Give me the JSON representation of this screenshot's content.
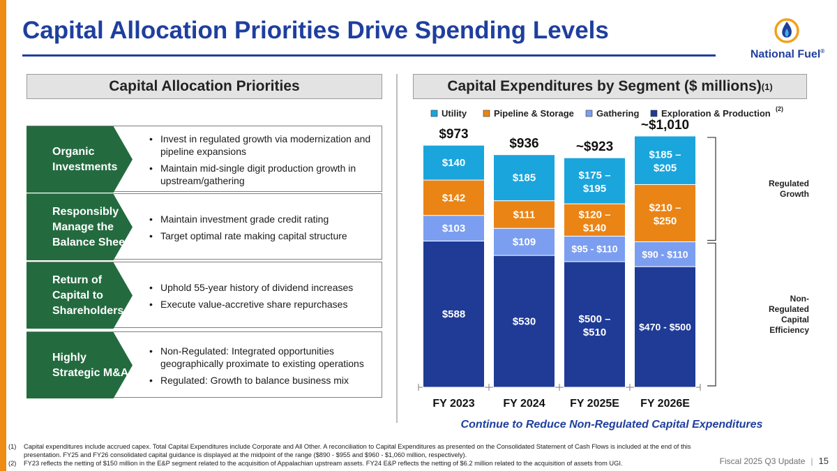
{
  "slide": {
    "title": "Capital Allocation Priorities Drive Spending Levels",
    "brand": "National Fuel",
    "brand_mark": "®",
    "footer_label": "Fiscal 2025 Q3 Update",
    "page_number": "15"
  },
  "left_panel": {
    "header": "Capital Allocation Priorities",
    "rows": [
      {
        "label": "Organic Investments",
        "bullets": [
          "Invest in regulated growth via modernization and pipeline expansions",
          "Maintain mid-single digit production growth in upstream/gathering"
        ]
      },
      {
        "label": "Responsibly Manage the Balance Sheet",
        "bullets": [
          "Maintain investment grade credit rating",
          "Target optimal rate making capital structure"
        ]
      },
      {
        "label": "Return of Capital to Shareholders",
        "bullets": [
          "Uphold 55-year history of dividend increases",
          "Execute value-accretive share repurchases"
        ]
      },
      {
        "label": "Highly Strategic M&A",
        "bullets": [
          "Non-Regulated: Integrated opportunities geographically proximate to existing operations",
          "Regulated: Growth to balance business mix"
        ]
      }
    ]
  },
  "right_panel": {
    "header": "Capital Expenditures by Segment ($ millions)",
    "header_note": "(1)",
    "caption": "Continue to Reduce Non-Regulated Capital Expenditures"
  },
  "chart_data": {
    "type": "bar",
    "stacked": true,
    "title": "Capital Expenditures by Segment ($ millions)",
    "categories": [
      "FY 2023",
      "FY 2024",
      "FY 2025E",
      "FY 2026E"
    ],
    "series": [
      {
        "name": "Exploration & Production",
        "color": "#1f3b96",
        "values": [
          588,
          530,
          505,
          485
        ],
        "labels": [
          "$588",
          "$530",
          "$500 – $510",
          "$470 - $500"
        ]
      },
      {
        "name": "Gathering",
        "color": "#7b9ef0",
        "values": [
          103,
          109,
          102.5,
          100
        ],
        "labels": [
          "$103",
          "$109",
          "$95 - $110",
          "$90 - $110"
        ]
      },
      {
        "name": "Pipeline & Storage",
        "color": "#ea8415",
        "values": [
          142,
          111,
          130,
          230
        ],
        "labels": [
          "$142",
          "$111",
          "$120 – $140",
          "$210 – $250"
        ]
      },
      {
        "name": "Utility",
        "color": "#1aa5dc",
        "values": [
          140,
          185,
          185,
          195
        ],
        "labels": [
          "$140",
          "$185",
          "$175 – $195",
          "$185 – $205"
        ]
      }
    ],
    "legend_order": [
      "Utility",
      "Pipeline & Storage",
      "Gathering",
      "Exploration & Production"
    ],
    "legend_note": "(2)",
    "legend_position": "top",
    "totals": [
      "$973",
      "$936",
      "~$923",
      "~$1,010"
    ],
    "ylim": [
      0,
      1080
    ],
    "grid": false,
    "brackets": [
      {
        "label": "Regulated Growth",
        "series": [
          "Utility",
          "Pipeline & Storage"
        ]
      },
      {
        "label": "Non-Regulated Capital Efficiency",
        "series": [
          "Gathering",
          "Exploration & Production"
        ]
      }
    ]
  },
  "footnotes": [
    {
      "marker": "(1)",
      "text": "Capital expenditures include accrued capex. Total Capital Expenditures include Corporate and All Other. A reconciliation to Capital Expenditures as presented on the Consolidated Statement of Cash Flows is included at the end of this presentation. FY25 and FY26 consolidated capital guidance is displayed at the midpoint of the range ($890 - $955 and $960 - $1,060 million, respectively)."
    },
    {
      "marker": "(2)",
      "text": "FY23 reflects the netting of $150 million in the E&P segment related to the acquisition of Appalachian upstream assets. FY24 E&P reflects the netting of $6.2 million related to the acquisition of assets from UGI."
    }
  ]
}
